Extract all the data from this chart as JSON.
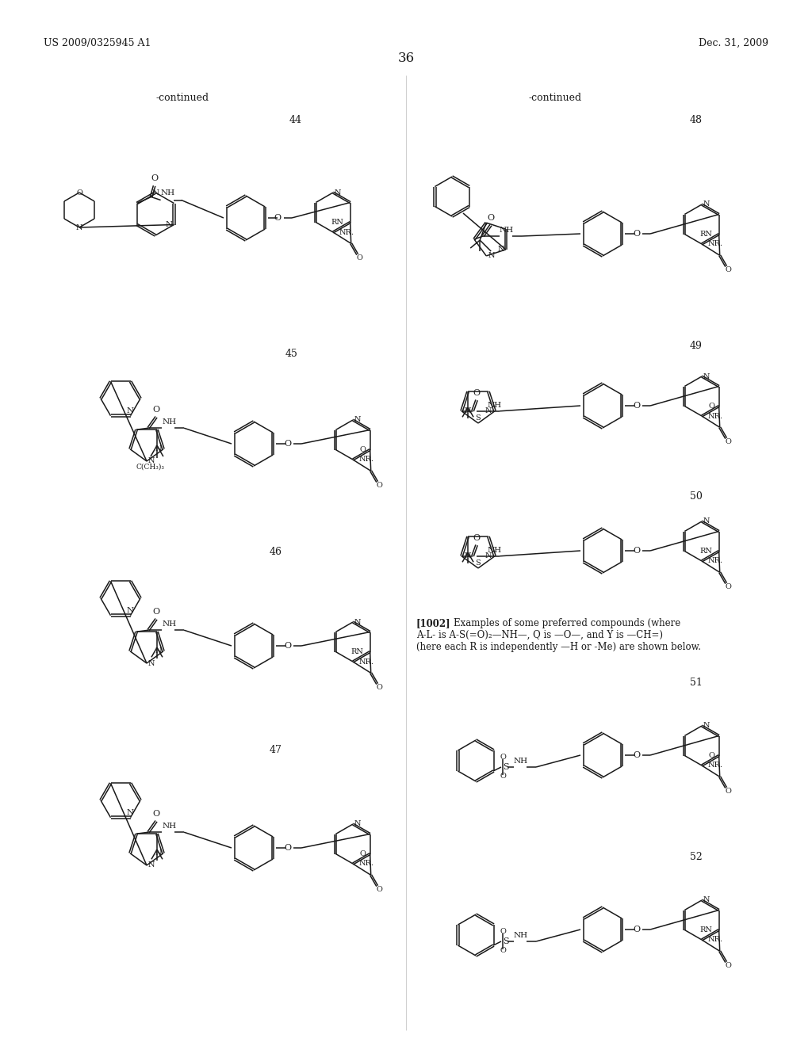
{
  "patent_number": "US 2009/0325945 A1",
  "date": "Dec. 31, 2009",
  "page_number": "36",
  "left_continued": "-continued",
  "right_continued": "-continued",
  "bg_color": "#ffffff",
  "text_color": "#1a1a1a",
  "line_color": "#1a1a1a",
  "font_size_header": 9,
  "font_size_page": 12,
  "font_size_compound": 9,
  "font_size_body": 8,
  "paragraph": "[1002]  Examples of some preferred compounds (where A-L- is A-S(=O)₂—NH—, Q is —O—, and Y is —CH=) (here each R is independently —H or -Me) are shown below."
}
